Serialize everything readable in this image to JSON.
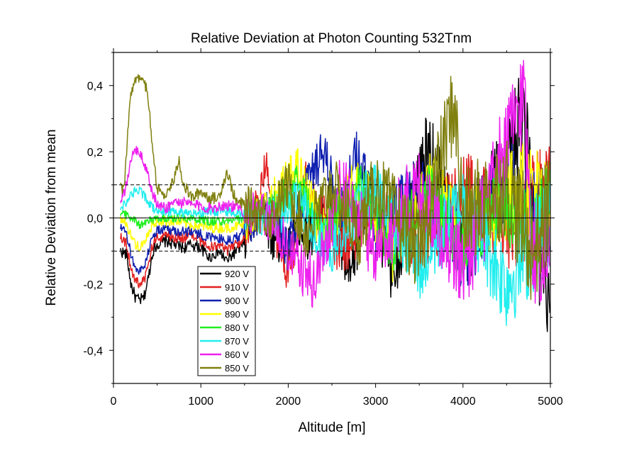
{
  "chart_data": {
    "type": "line",
    "title": "Relative Deviation at Photon Counting 532Tnm",
    "xlabel": "Altitude [m]",
    "ylabel": "Relative Deviation from mean",
    "xlim": [
      0,
      5000
    ],
    "ylim": [
      -0.5,
      0.5
    ],
    "x_ticks": [
      0,
      1000,
      2000,
      3000,
      4000,
      5000
    ],
    "x_tick_labels": [
      "0",
      "1000",
      "2000",
      "3000",
      "4000",
      "5000"
    ],
    "y_ticks": [
      -0.4,
      -0.2,
      0.0,
      0.2,
      0.4
    ],
    "y_tick_labels": [
      "-0,4",
      "-0,2",
      "0,0",
      "0,2",
      "0,4"
    ],
    "reference_lines": [
      {
        "y": 0.1,
        "style": "dashed"
      },
      {
        "y": 0.0,
        "style": "solid"
      },
      {
        "y": -0.1,
        "style": "dashed"
      }
    ],
    "legend_position": "lower-left",
    "series": [
      {
        "name": "920 V",
        "color": "#000000",
        "x": [
          80,
          150,
          200,
          250,
          300,
          350,
          400,
          450,
          500,
          600,
          700,
          800,
          900,
          1000,
          1100,
          1200,
          1300,
          1400,
          1500,
          1700,
          1800,
          2000,
          2100,
          2200,
          2500,
          2700,
          2900,
          3200,
          3600,
          4000,
          4400,
          4700,
          4800,
          4900,
          5000
        ],
        "y": [
          -0.1,
          -0.11,
          -0.2,
          -0.24,
          -0.25,
          -0.24,
          -0.18,
          -0.1,
          -0.08,
          -0.07,
          -0.08,
          -0.09,
          -0.08,
          -0.09,
          -0.12,
          -0.1,
          -0.13,
          -0.1,
          -0.08,
          0.05,
          -0.05,
          -0.1,
          0.0,
          -0.05,
          0.05,
          -0.2,
          0.1,
          -0.15,
          0.2,
          -0.1,
          0.1,
          0.3,
          0.0,
          -0.2,
          -0.32
        ],
        "noise": 0.04
      },
      {
        "name": "910 V",
        "color": "#e32020",
        "x": [
          80,
          150,
          200,
          250,
          300,
          350,
          400,
          450,
          500,
          600,
          700,
          800,
          900,
          1000,
          1100,
          1200,
          1300,
          1400,
          1500,
          1700,
          1760,
          1800,
          2000,
          2100,
          2200,
          2600,
          3000,
          3500,
          4000,
          4500,
          5000
        ],
        "y": [
          -0.05,
          -0.08,
          -0.15,
          -0.19,
          -0.2,
          -0.19,
          -0.14,
          -0.08,
          -0.06,
          -0.05,
          -0.06,
          -0.06,
          -0.05,
          -0.07,
          -0.09,
          -0.08,
          -0.1,
          -0.08,
          -0.06,
          0.1,
          0.18,
          0.0,
          -0.17,
          -0.05,
          0.1,
          -0.1,
          0.05,
          -0.1,
          0.1,
          -0.05,
          0.1
        ],
        "noise": 0.035
      },
      {
        "name": "900 V",
        "color": "#1020b0",
        "x": [
          80,
          150,
          200,
          250,
          300,
          350,
          400,
          450,
          500,
          600,
          700,
          800,
          900,
          1000,
          1100,
          1200,
          1300,
          1400,
          1500,
          1800,
          2000,
          2200,
          2400,
          2600,
          2800,
          3000,
          3500,
          4000,
          4500,
          5000
        ],
        "y": [
          -0.03,
          -0.05,
          -0.11,
          -0.15,
          -0.16,
          -0.15,
          -0.1,
          -0.05,
          -0.04,
          -0.03,
          -0.04,
          -0.04,
          -0.04,
          -0.05,
          -0.06,
          -0.06,
          -0.07,
          -0.06,
          -0.04,
          0.05,
          -0.1,
          0.1,
          0.2,
          0.0,
          0.2,
          -0.05,
          0.1,
          -0.1,
          0.1,
          0.0
        ],
        "noise": 0.035
      },
      {
        "name": "890 V",
        "color": "#ffff00",
        "x": [
          80,
          150,
          200,
          250,
          300,
          350,
          400,
          450,
          500,
          700,
          900,
          1100,
          1300,
          1500,
          1800,
          2100,
          2400,
          2800,
          3200,
          3600,
          4000,
          4400,
          4800,
          5000
        ],
        "y": [
          0.0,
          -0.02,
          -0.05,
          -0.08,
          -0.09,
          -0.08,
          -0.05,
          -0.02,
          -0.01,
          -0.01,
          -0.02,
          -0.03,
          -0.03,
          -0.02,
          0.05,
          0.15,
          -0.05,
          0.1,
          -0.1,
          0.1,
          -0.05,
          0.05,
          0.1,
          0.0
        ],
        "noise": 0.035
      },
      {
        "name": "880 V",
        "color": "#22ee22",
        "x": [
          80,
          200,
          300,
          400,
          500,
          700,
          900,
          1100,
          1300,
          1500,
          1800,
          2100,
          2400,
          2800,
          3200,
          3600,
          4000,
          4400,
          4800,
          5000
        ],
        "y": [
          0.02,
          0.0,
          -0.02,
          -0.01,
          0.0,
          0.0,
          0.0,
          -0.01,
          -0.01,
          0.0,
          0.02,
          0.1,
          -0.05,
          0.1,
          -0.08,
          0.08,
          -0.1,
          0.05,
          -0.05,
          0.05
        ],
        "noise": 0.03
      },
      {
        "name": "870 V",
        "color": "#22eeee",
        "x": [
          80,
          150,
          200,
          250,
          300,
          350,
          400,
          450,
          500,
          700,
          900,
          1100,
          1300,
          1500,
          1800,
          2100,
          2500,
          3000,
          3500,
          4000,
          4500,
          5000
        ],
        "y": [
          0.03,
          0.05,
          0.07,
          0.08,
          0.08,
          0.07,
          0.05,
          0.03,
          0.02,
          0.02,
          0.01,
          0.02,
          0.02,
          0.01,
          0.0,
          0.05,
          -0.1,
          0.1,
          -0.15,
          0.05,
          -0.2,
          0.0
        ],
        "noise": 0.035
      },
      {
        "name": "860 V",
        "color": "#ee22ee",
        "x": [
          80,
          150,
          200,
          250,
          300,
          350,
          400,
          450,
          500,
          600,
          700,
          900,
          1100,
          1300,
          1500,
          1800,
          2000,
          2300,
          2600,
          3000,
          3500,
          4000,
          4300,
          4700,
          4800,
          5000
        ],
        "y": [
          0.04,
          0.1,
          0.17,
          0.21,
          0.2,
          0.17,
          0.12,
          0.07,
          0.04,
          0.03,
          0.05,
          0.04,
          0.03,
          0.04,
          0.02,
          0.0,
          -0.1,
          -0.2,
          0.1,
          -0.1,
          0.1,
          -0.15,
          0.05,
          0.38,
          -0.1,
          -0.1
        ],
        "noise": 0.04
      },
      {
        "name": "850 V",
        "color": "#808010",
        "x": [
          80,
          120,
          150,
          200,
          250,
          300,
          350,
          400,
          450,
          500,
          550,
          600,
          700,
          750,
          800,
          900,
          1000,
          1100,
          1200,
          1300,
          1400,
          1500,
          1800,
          2000,
          2200,
          2500,
          2800,
          3000,
          3500,
          3900,
          4000,
          4500,
          4800,
          5000
        ],
        "y": [
          0.09,
          0.08,
          0.2,
          0.38,
          0.42,
          0.43,
          0.42,
          0.36,
          0.2,
          0.09,
          0.08,
          0.07,
          0.12,
          0.18,
          0.1,
          0.06,
          0.08,
          0.06,
          0.06,
          0.14,
          0.05,
          0.04,
          0.0,
          0.1,
          -0.05,
          0.1,
          -0.05,
          0.1,
          -0.1,
          0.35,
          0.0,
          0.1,
          -0.1,
          0.05
        ],
        "noise": 0.04
      }
    ]
  }
}
